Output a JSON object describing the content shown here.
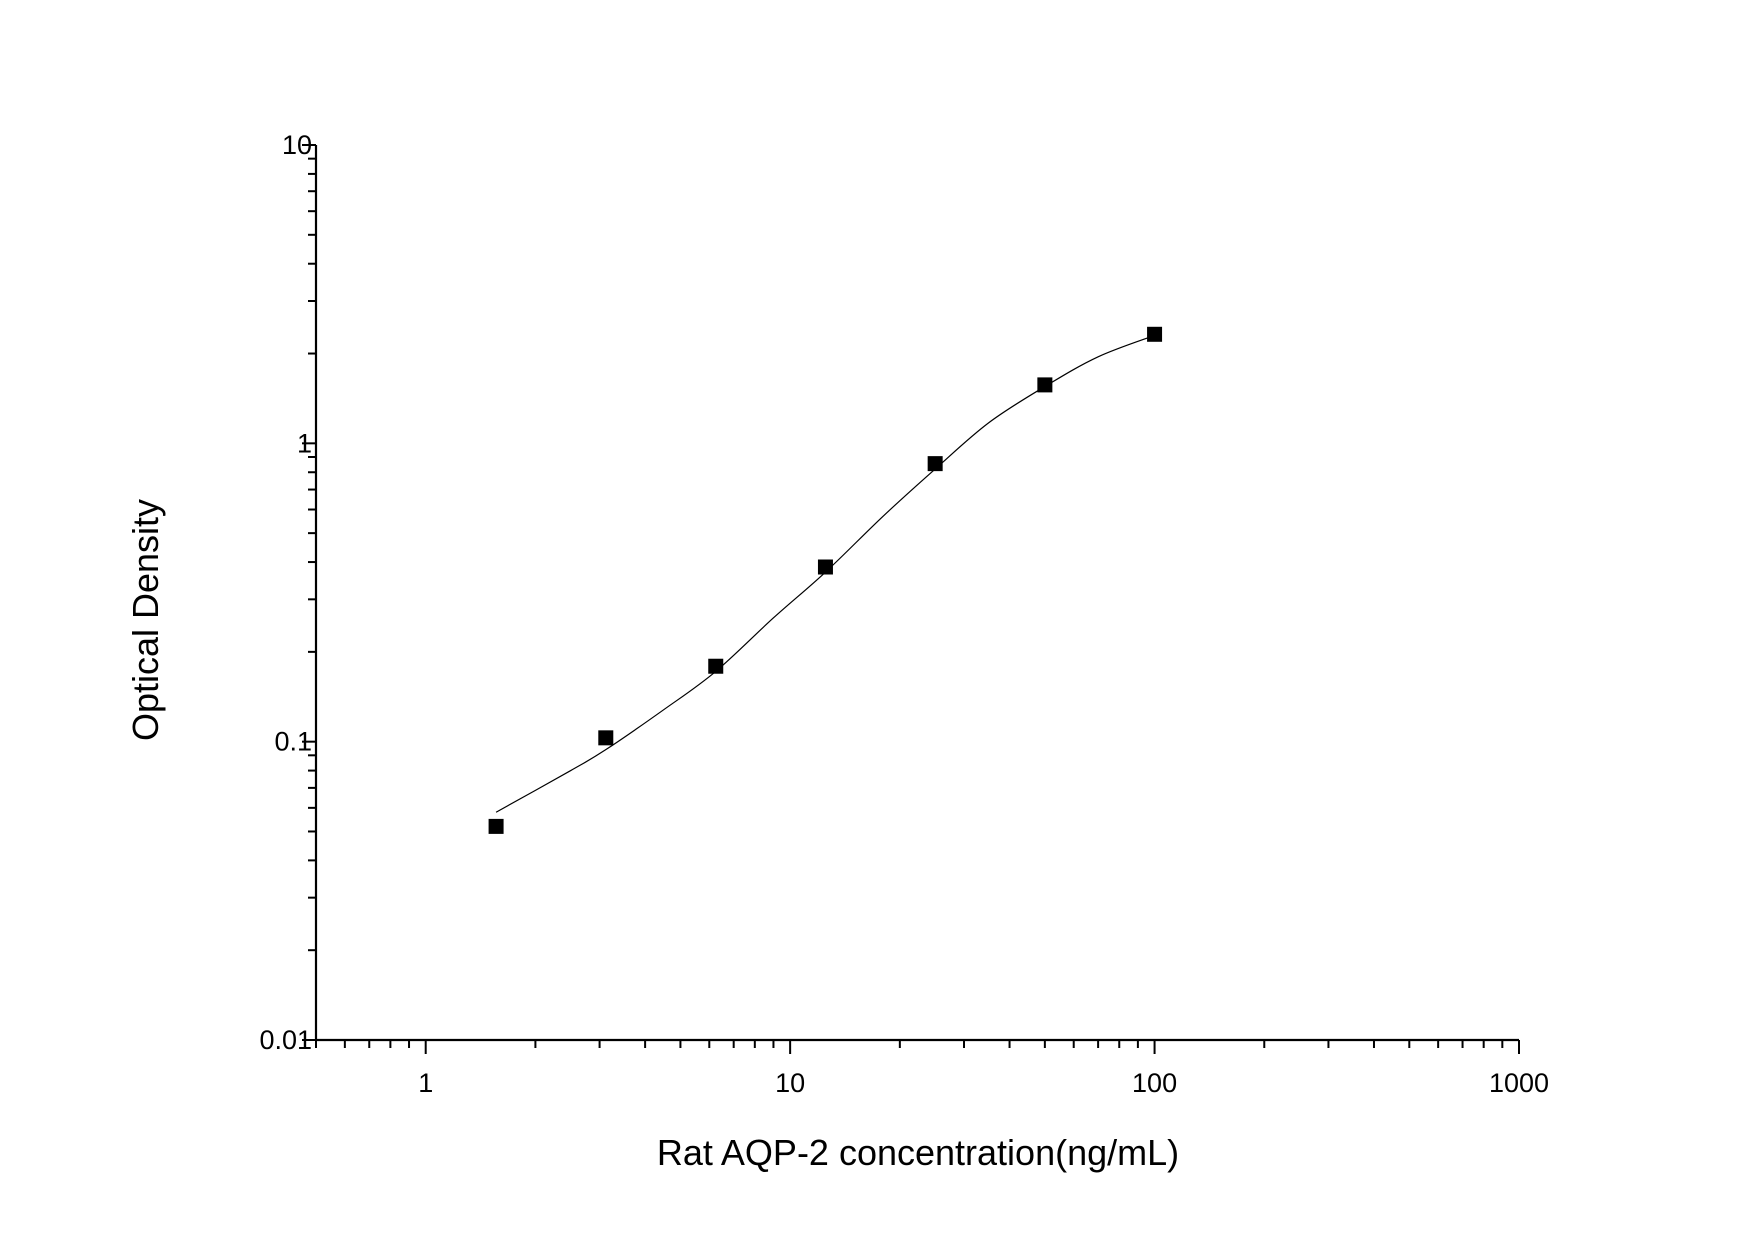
{
  "chart_data": {
    "type": "scatter",
    "title": "",
    "xlabel": "Rat AQP-2 concentration(ng/mL)",
    "ylabel": "Optical Density",
    "x_scale": "log",
    "y_scale": "log",
    "xlim": [
      0.5,
      1000
    ],
    "ylim": [
      0.01,
      10
    ],
    "x_ticks": [
      {
        "value": 1,
        "label": "1"
      },
      {
        "value": 10,
        "label": "10"
      },
      {
        "value": 100,
        "label": "100"
      },
      {
        "value": 1000,
        "label": "1000"
      }
    ],
    "y_ticks": [
      {
        "value": 0.01,
        "label": "0.01"
      },
      {
        "value": 0.1,
        "label": "0.1"
      },
      {
        "value": 1,
        "label": "1"
      },
      {
        "value": 10,
        "label": "10"
      }
    ],
    "grid": false,
    "points": {
      "x": [
        1.56,
        3.12,
        6.25,
        12.5,
        25,
        50,
        100
      ],
      "y": [
        0.052,
        0.103,
        0.179,
        0.385,
        0.855,
        1.57,
        2.32
      ],
      "marker": "square",
      "color": "#000000"
    },
    "fit_curve": {
      "x": [
        1.56,
        2.5,
        3.12,
        4.5,
        6.25,
        9,
        12.5,
        18,
        25,
        35,
        50,
        70,
        100
      ],
      "y": [
        0.058,
        0.08,
        0.094,
        0.128,
        0.172,
        0.26,
        0.37,
        0.57,
        0.82,
        1.17,
        1.55,
        1.95,
        2.3
      ],
      "color": "#000000"
    }
  }
}
